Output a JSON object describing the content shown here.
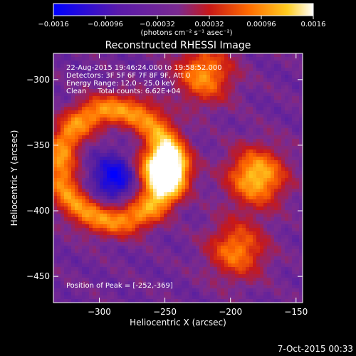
{
  "chart_data": {
    "type": "heatmap",
    "title": "Reconstructed RHESSI Image",
    "xlabel": "Heliocentric X (arcsec)",
    "ylabel": "Heliocentric Y (arcsec)",
    "xlim": [
      -335,
      -145
    ],
    "ylim": [
      -470,
      -280
    ],
    "xticks": [
      -300,
      -250,
      -200,
      -150
    ],
    "xtick_labels": [
      "−300",
      "−250",
      "−200",
      "−150"
    ],
    "yticks": [
      -450,
      -400,
      -350,
      -300
    ],
    "ytick_labels": [
      "−450",
      "−400",
      "−350",
      "−300"
    ],
    "colorbar": {
      "range": [
        -0.0016,
        0.0016
      ],
      "ticks": [
        -0.0016,
        -0.00096,
        -0.00032,
        0.00032,
        0.00096,
        0.0016
      ],
      "tick_labels": [
        "−0.0016",
        "−0.00096",
        "−0.00032",
        "0.00032",
        "0.00096",
        "0.0016"
      ],
      "label": "(photons cm⁻² s⁻¹ asec⁻²)",
      "colors": [
        "#0000ff",
        "#5a1aaa",
        "#7a2a90",
        "#c81818",
        "#ff6a00",
        "#ffcc20",
        "#ffffff"
      ]
    },
    "sources": [
      {
        "x": -252,
        "y": -369,
        "sigma": 13,
        "amp": 1.0
      },
      {
        "x": -180,
        "y": -374,
        "sigma": 15,
        "amp": 0.75
      },
      {
        "x": -220,
        "y": -296,
        "sigma": 15,
        "amp": 0.6
      },
      {
        "x": -195,
        "y": -430,
        "sigma": 15,
        "amp": 0.55
      },
      {
        "x": -288,
        "y": -365,
        "ring_radius": 42,
        "ring_width": 9,
        "amp": 0.6
      },
      {
        "x": -288,
        "y": -375,
        "sigma": 12,
        "amp": -0.5
      }
    ],
    "annotations": {
      "time": "22-Aug-2015 19:46:24.000 to 19:58:52.000",
      "detectors": "Detectors: 3F 5F 6F 7F 8F 9F, Att 0",
      "energy": "Energy Range: 12.0 - 25.0 keV",
      "method_counts": "Clean     Total counts: 6.62E+04",
      "peak": "Position of Peak = [-252,-369]"
    },
    "footer_date": "7-Oct-2015 00:33"
  }
}
